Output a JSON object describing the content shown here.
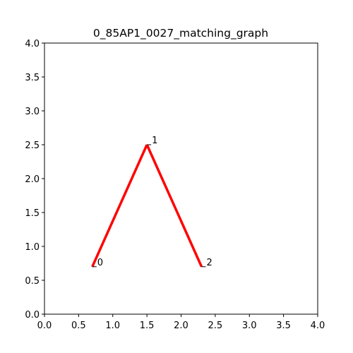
{
  "chart_data": {
    "type": "line",
    "title": "0_85AP1_0027_matching_graph",
    "xlabel": "",
    "ylabel": "",
    "xlim": [
      0.0,
      4.0
    ],
    "ylim": [
      0.0,
      4.0
    ],
    "x_ticks": [
      "0.0",
      "0.5",
      "1.0",
      "1.5",
      "2.0",
      "2.5",
      "3.0",
      "3.5",
      "4.0"
    ],
    "y_ticks": [
      "0.0",
      "0.5",
      "1.0",
      "1.5",
      "2.0",
      "2.5",
      "3.0",
      "3.5",
      "4.0"
    ],
    "grid": false,
    "nodes": [
      {
        "label": "0",
        "x": 0.7,
        "y": 0.7
      },
      {
        "label": "1",
        "x": 1.5,
        "y": 2.5
      },
      {
        "label": "2",
        "x": 2.3,
        "y": 0.7
      }
    ],
    "edges": [
      {
        "from": 0,
        "to": 1
      },
      {
        "from": 1,
        "to": 2
      }
    ],
    "edge_color": "#ff0000"
  }
}
